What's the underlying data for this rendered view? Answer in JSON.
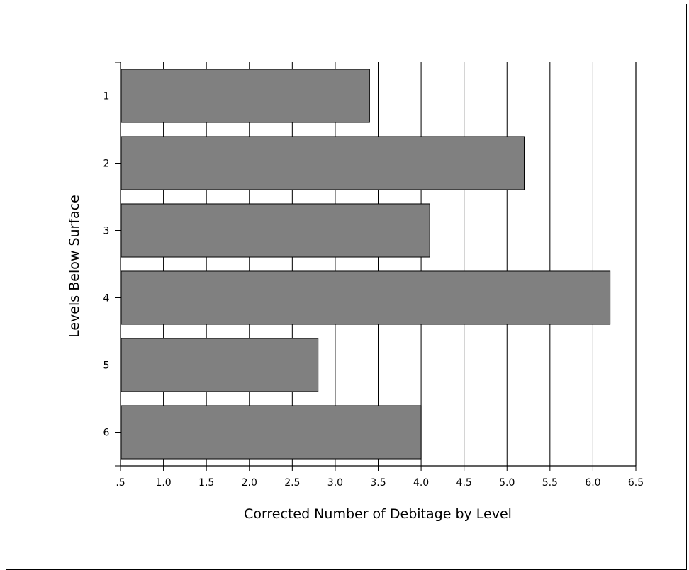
{
  "chart_data": {
    "type": "bar",
    "orientation": "horizontal",
    "categories": [
      "1",
      "2",
      "3",
      "4",
      "5",
      "6"
    ],
    "values": [
      3.4,
      5.2,
      4.1,
      6.2,
      2.8,
      4.0
    ],
    "xlabel": "Corrected Number of Debitage by Level",
    "ylabel": "Levels Below Surface",
    "xlim": [
      0.5,
      6.5
    ],
    "x_ticks": [
      0.5,
      1.0,
      1.5,
      2.0,
      2.5,
      3.0,
      3.5,
      4.0,
      4.5,
      5.0,
      5.5,
      6.0,
      6.5
    ],
    "x_tick_labels": [
      ".5",
      "1.0",
      "1.5",
      "2.0",
      "2.5",
      "3.0",
      "3.5",
      "4.0",
      "4.5",
      "5.0",
      "5.5",
      "6.0",
      "6.5"
    ],
    "grid": "vertical",
    "bar_color": "#808080",
    "grid_color": "#000000"
  }
}
